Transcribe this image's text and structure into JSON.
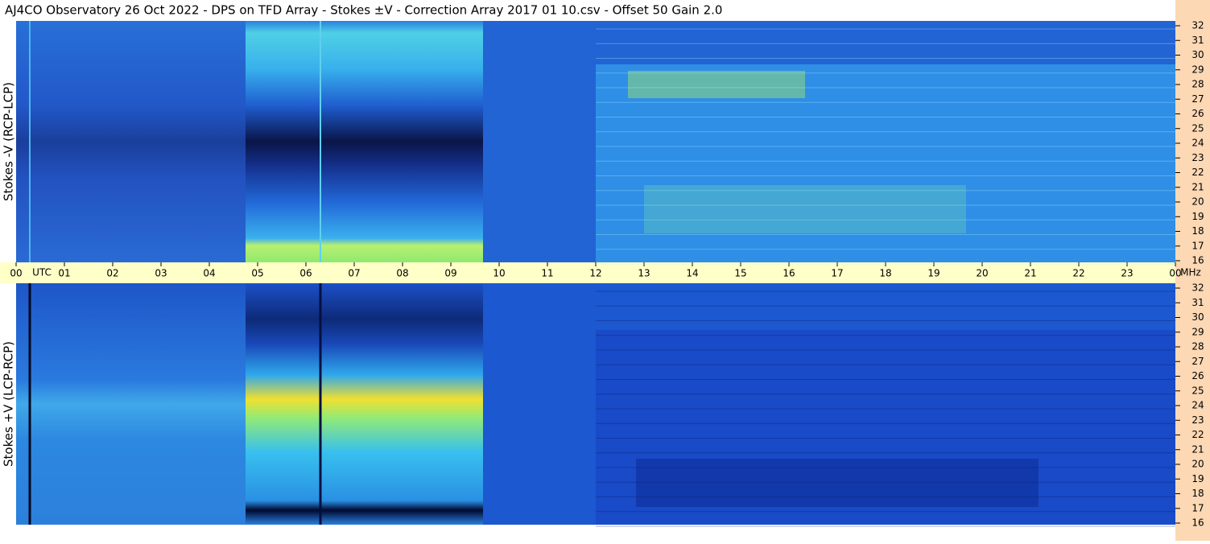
{
  "header": {
    "title": "AJ4CO Observatory  26 Oct 2022  -  DPS on TFD Array  -  Stokes ±V  -  Correction Array 2017 01 10.csv  -  Offset 50  Gain 2.0"
  },
  "time_axis": {
    "xlabel": "UTC",
    "unit": "MHz",
    "xlim": [
      0,
      24
    ],
    "xticks": [
      {
        "value": 0,
        "label": "00"
      },
      {
        "value": 1,
        "label": "01"
      },
      {
        "value": 2,
        "label": "02"
      },
      {
        "value": 3,
        "label": "03"
      },
      {
        "value": 4,
        "label": "04"
      },
      {
        "value": 5,
        "label": "05"
      },
      {
        "value": 6,
        "label": "06"
      },
      {
        "value": 7,
        "label": "07"
      },
      {
        "value": 8,
        "label": "08"
      },
      {
        "value": 9,
        "label": "09"
      },
      10,
      11,
      12,
      13,
      14,
      15,
      16,
      17,
      18,
      19,
      20,
      21,
      22,
      23,
      {
        "value": 24,
        "label": "00"
      }
    ]
  },
  "chart_data": [
    {
      "type": "heatmap",
      "ylabel": "Stokes -V (RCP-LCP)",
      "ylim": [
        16,
        32
      ],
      "yticks": [
        16,
        17,
        18,
        19,
        20,
        21,
        22,
        23,
        24,
        25,
        26,
        27,
        28,
        29,
        30,
        31,
        32
      ]
    },
    {
      "type": "heatmap",
      "ylabel": "Stokes +V (LCP-RCP)",
      "ylim": [
        16,
        32
      ],
      "yticks": [
        16,
        17,
        18,
        19,
        20,
        21,
        22,
        23,
        24,
        25,
        26,
        27,
        28,
        29,
        30,
        31,
        32
      ]
    }
  ]
}
